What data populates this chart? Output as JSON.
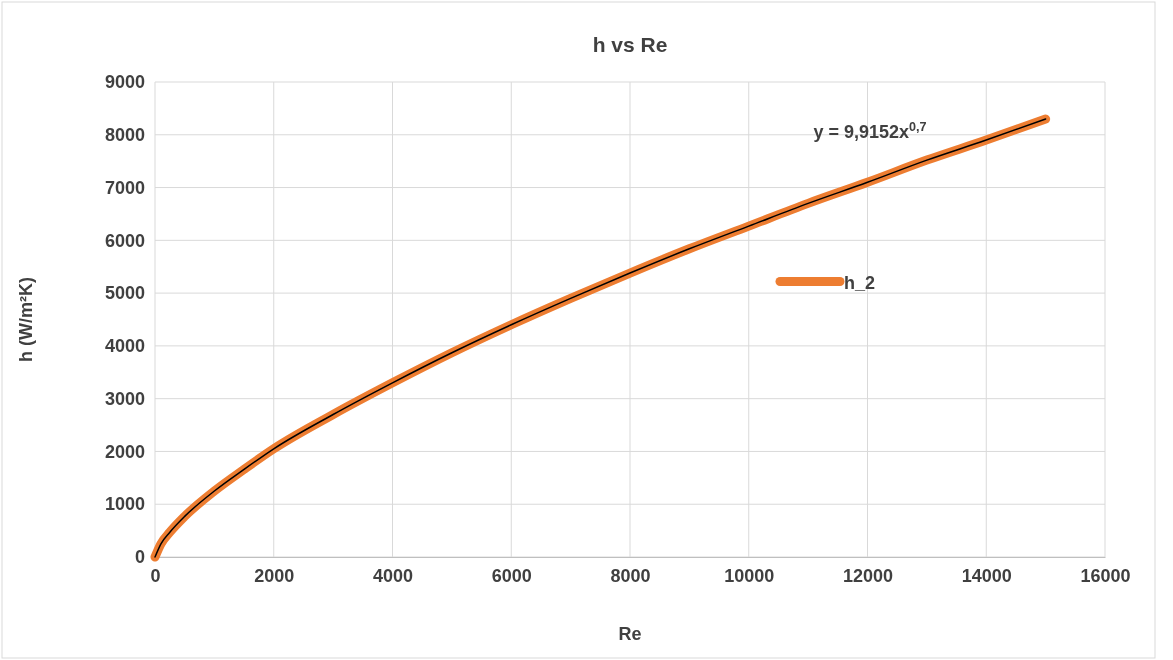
{
  "chart_data": {
    "type": "line",
    "title": "h vs Re",
    "xlabel": "Re",
    "ylabel": "h (W/m²K)",
    "x": [
      0,
      100,
      250,
      500,
      1000,
      1500,
      2000,
      3000,
      4000,
      5000,
      6000,
      7000,
      8000,
      9000,
      10000,
      11000,
      12000,
      13000,
      14000,
      15000
    ],
    "series": [
      {
        "name": "h_2",
        "color": "#ed7d31",
        "values": [
          0,
          250,
          470,
          770,
          1250,
          1660,
          2050,
          2700,
          3300,
          3870,
          4400,
          4900,
          5380,
          5840,
          6270,
          6700,
          7100,
          7520,
          7900,
          8300
        ]
      },
      {
        "type": "line",
        "color": "#000000",
        "x": [
          0,
          100,
          250,
          500,
          1000,
          1500,
          2000,
          3000,
          4000,
          5000,
          6000,
          7000,
          8000,
          9000,
          10000,
          11000,
          12000,
          13000,
          14000,
          15000
        ],
        "values": [
          0,
          250,
          470,
          770,
          1250,
          1660,
          2050,
          2700,
          3300,
          3870,
          4400,
          4900,
          5380,
          5840,
          6270,
          6700,
          7100,
          7520,
          7900,
          8300
        ]
      }
    ],
    "xlim": [
      0,
      16000
    ],
    "xticks": [
      0,
      2000,
      4000,
      6000,
      8000,
      10000,
      12000,
      14000,
      16000
    ],
    "ylim": [
      0,
      9000
    ],
    "yticks": [
      0,
      1000,
      2000,
      3000,
      4000,
      5000,
      6000,
      7000,
      8000,
      9000
    ],
    "grid": true,
    "legend": "right",
    "marker": "none",
    "line_style": "solid",
    "annotations": [
      "y = 9,9152x$^{0,7}$"
    ]
  }
}
